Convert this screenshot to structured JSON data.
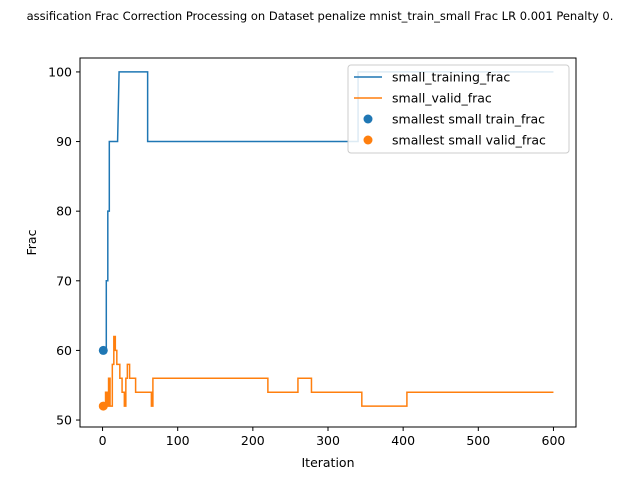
{
  "chart_data": {
    "type": "line",
    "title": "assification Frac Correction Processing on Dataset penalize mnist_train_small Frac LR 0.001 Penalty 0.",
    "xlabel": "Iteration",
    "ylabel": "Frac",
    "xlim": [
      -30,
      630
    ],
    "ylim": [
      49,
      102
    ],
    "xticks": [
      0,
      100,
      200,
      300,
      400,
      500,
      600
    ],
    "yticks": [
      50,
      60,
      70,
      80,
      90,
      100
    ],
    "legend_loc": "top-right",
    "grid": false,
    "series": [
      {
        "name": "small_training_frac",
        "kind": "line",
        "color": "#1f77b4",
        "x": [
          0,
          5,
          5,
          7,
          7,
          9,
          9,
          12,
          12,
          20,
          20,
          22,
          22,
          60,
          60,
          340,
          340,
          600
        ],
        "y": [
          60,
          60,
          70,
          70,
          80,
          80,
          90,
          90,
          90,
          90,
          90,
          100,
          100,
          100,
          90,
          90,
          100,
          100
        ]
      },
      {
        "name": "small_valid_frac",
        "kind": "line",
        "color": "#ff7f0e",
        "x": [
          0,
          4,
          4,
          6,
          6,
          8,
          8,
          10,
          10,
          13,
          13,
          15,
          15,
          17,
          17,
          19,
          19,
          23,
          23,
          26,
          26,
          29,
          29,
          31,
          31,
          33,
          33,
          36,
          36,
          44,
          44,
          65,
          65,
          67,
          67,
          70,
          70,
          220,
          220,
          260,
          260,
          262,
          262,
          278,
          278,
          345,
          345,
          405,
          405,
          600
        ],
        "y": [
          52,
          52,
          54,
          54,
          52,
          52,
          56,
          56,
          52,
          52,
          58,
          58,
          62,
          62,
          60,
          60,
          58,
          58,
          56,
          56,
          54,
          54,
          52,
          52,
          56,
          56,
          58,
          58,
          56,
          56,
          54,
          54,
          52,
          52,
          56,
          56,
          56,
          56,
          54,
          54,
          56,
          56,
          56,
          56,
          54,
          54,
          52,
          52,
          54,
          54
        ]
      },
      {
        "name": "smallest small train_frac",
        "kind": "scatter",
        "color": "#1f77b4",
        "x": [
          1
        ],
        "y": [
          60
        ]
      },
      {
        "name": "smallest small valid_frac",
        "kind": "scatter",
        "color": "#ff7f0e",
        "x": [
          1
        ],
        "y": [
          52
        ]
      }
    ]
  }
}
